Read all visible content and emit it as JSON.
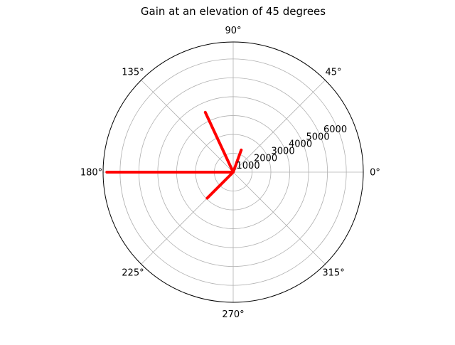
{
  "chart_data": {
    "type": "polar-line",
    "title": "Gain at an elevation of 45 degrees",
    "angle_ticks": [
      "0°",
      "45°",
      "90°",
      "135°",
      "180°",
      "225°",
      "270°",
      "315°"
    ],
    "angle_tick_values_deg": [
      0,
      45,
      90,
      135,
      180,
      225,
      270,
      315
    ],
    "radial_ticks": [
      "1000",
      "2000",
      "3000",
      "4000",
      "5000",
      "6000"
    ],
    "radial_tick_values": [
      1000,
      2000,
      3000,
      4000,
      5000,
      6000
    ],
    "rlim": [
      0,
      6900
    ],
    "grid": true,
    "series": [
      {
        "color": "#ff0000",
        "points": [
          {
            "theta_deg": 0,
            "r": 0
          },
          {
            "theta_deg": 70,
            "r": 1250
          },
          {
            "theta_deg": 0,
            "r": 0
          },
          {
            "theta_deg": 115,
            "r": 3500
          },
          {
            "theta_deg": 0,
            "r": 0
          },
          {
            "theta_deg": 180,
            "r": 6700
          },
          {
            "theta_deg": 0,
            "r": 0
          },
          {
            "theta_deg": 225,
            "r": 1950
          },
          {
            "theta_deg": 0,
            "r": 0
          }
        ]
      }
    ]
  }
}
